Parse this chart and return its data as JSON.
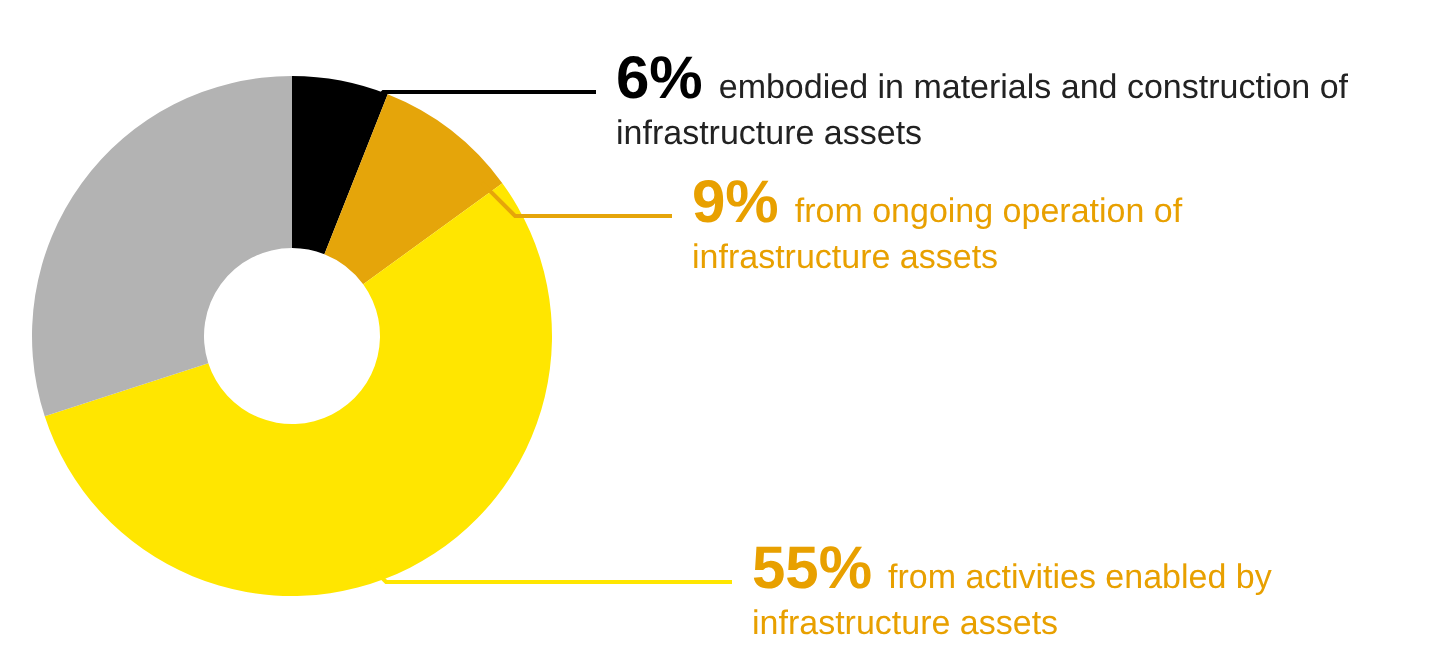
{
  "chart_data": {
    "type": "donut",
    "categories": [
      "embodied in materials and construction of infrastructure assets",
      "from ongoing operation of infrastructure assets",
      "from activities enabled by infrastructure assets",
      null
    ],
    "values": [
      6,
      9,
      55,
      30
    ],
    "colors": [
      "#000000",
      "#e5a50a",
      "#ffe600",
      "#b3b3b3"
    ],
    "value_labels": [
      "6%",
      "9%",
      "55%",
      null
    ]
  }
}
